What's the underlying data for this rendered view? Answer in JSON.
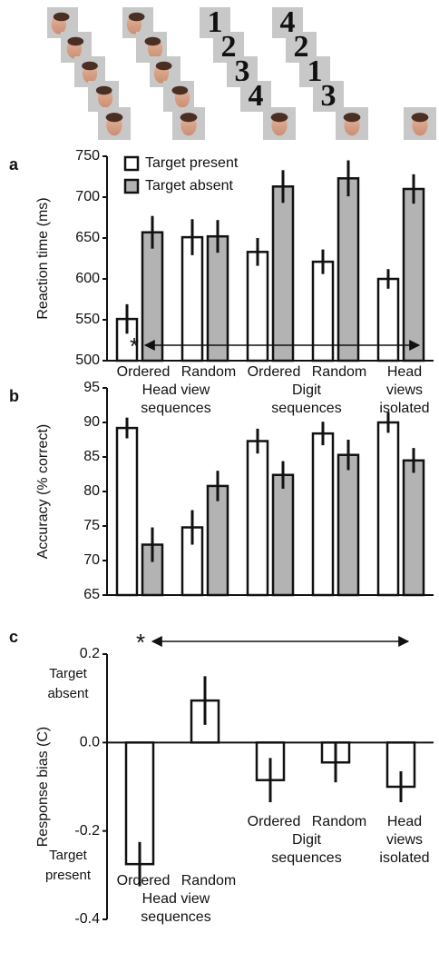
{
  "stimuli": {
    "digit_sequences": [
      [
        "1",
        "2",
        "3",
        "4"
      ],
      [
        "4",
        "2",
        "1",
        "3"
      ]
    ]
  },
  "chart_data": [
    {
      "type": "bar",
      "panel": "a",
      "ylabel": "Reaction time (ms)",
      "categories": [
        [
          "Ordered"
        ],
        [
          "Random"
        ],
        [
          "Ordered"
        ],
        [
          "Random"
        ],
        [
          "Head",
          "views",
          "isolated"
        ]
      ],
      "groups": [
        [
          "Head view",
          "sequences"
        ],
        [
          "Digit",
          "sequences"
        ]
      ],
      "series": [
        {
          "name": "Target present",
          "color": "#ffffff",
          "values": [
            551,
            651,
            633,
            621,
            600
          ],
          "errors": [
            18,
            22,
            17,
            15,
            12
          ]
        },
        {
          "name": "Target absent",
          "color": "#b3b3b3",
          "values": [
            657,
            652,
            713,
            723,
            710
          ],
          "errors": [
            20,
            20,
            20,
            22,
            18
          ]
        }
      ],
      "ylim": [
        500,
        750
      ],
      "yticks": [
        500,
        550,
        600,
        650,
        700,
        750
      ],
      "legend": "upper left",
      "annotation": "*"
    },
    {
      "type": "bar",
      "panel": "b",
      "ylabel": "Accuracy (% correct)",
      "series": [
        {
          "name": "Target present",
          "color": "#ffffff",
          "values": [
            89.2,
            74.8,
            87.3,
            88.4,
            90.0
          ],
          "errors": [
            1.5,
            2.5,
            1.8,
            1.7,
            1.5
          ]
        },
        {
          "name": "Target absent",
          "color": "#b3b3b3",
          "values": [
            72.3,
            80.8,
            82.4,
            85.3,
            84.5
          ],
          "errors": [
            2.5,
            2.2,
            2.0,
            2.2,
            1.8
          ]
        }
      ],
      "ylim": [
        65,
        95
      ],
      "yticks": [
        65,
        70,
        75,
        80,
        85,
        90,
        95
      ]
    },
    {
      "type": "bar",
      "panel": "c",
      "ylabel": "Response bias (C)",
      "categories": [
        [
          "Ordered"
        ],
        [
          "Random"
        ],
        [
          "Ordered"
        ],
        [
          "Random"
        ],
        [
          "Head",
          "views",
          "isolated"
        ]
      ],
      "groups": [
        [
          "Head view",
          "sequences"
        ],
        [
          "Digit",
          "sequences"
        ]
      ],
      "series": [
        {
          "color": "#ffffff",
          "values": [
            -0.275,
            0.095,
            -0.085,
            -0.045,
            -0.1
          ],
          "errors": [
            0.05,
            0.055,
            0.05,
            0.045,
            0.035
          ]
        }
      ],
      "ylim": [
        -0.4,
        0.2
      ],
      "yticks": [
        -0.4,
        -0.2,
        {
          "value": 0,
          "label": "0.0"
        },
        0.2
      ],
      "side_labels": [
        [
          "Target",
          "absent"
        ],
        [
          "Target",
          "present"
        ]
      ],
      "annotation": "*"
    }
  ]
}
